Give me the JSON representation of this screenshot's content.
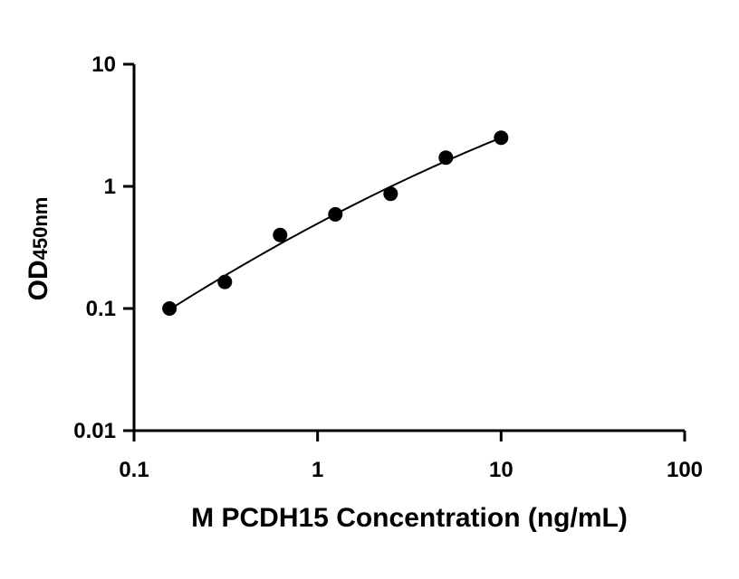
{
  "chart_data": {
    "type": "scatter",
    "title": "",
    "xlabel": "M PCDH15 Concentration (ng/mL)",
    "ylabel": "OD",
    "ylabel_subscript": "450nm",
    "xscale": "log",
    "yscale": "log",
    "xlim": [
      0.1,
      100
    ],
    "ylim": [
      0.01,
      10
    ],
    "xticks": [
      0.1,
      1,
      10,
      100
    ],
    "xtick_labels": [
      "0.1",
      "1",
      "10",
      "100"
    ],
    "yticks": [
      0.01,
      0.1,
      1,
      10
    ],
    "ytick_labels": [
      "0.01",
      "0.1",
      "1",
      "10"
    ],
    "grid": false,
    "legend": "none",
    "series": [
      {
        "x": [
          0.156,
          0.3125,
          0.625,
          1.25,
          2.5,
          5,
          10
        ],
        "y": [
          0.1,
          0.165,
          0.4,
          0.59,
          0.87,
          1.72,
          2.5
        ],
        "marker": "filled-circle",
        "fit_line": true
      }
    ],
    "colors": {
      "points": "#000000",
      "line": "#000000",
      "axes": "#000000"
    }
  }
}
